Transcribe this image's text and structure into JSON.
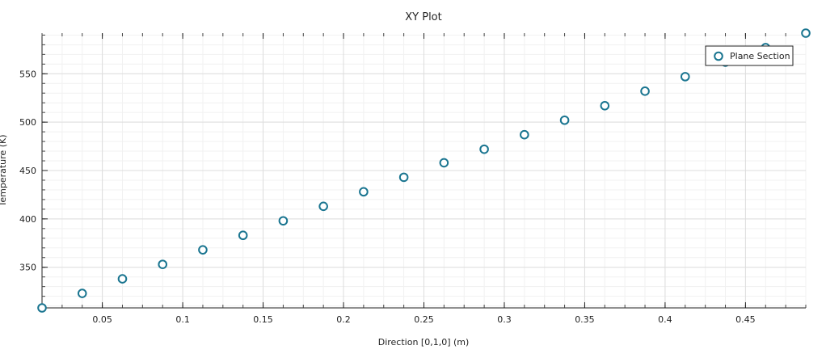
{
  "chart_data": {
    "type": "scatter",
    "title": "XY Plot",
    "xlabel": "Direction [0,1,0] (m)",
    "ylabel": "Temperature (K)",
    "xlim": [
      0.0125,
      0.4875
    ],
    "ylim": [
      308,
      592
    ],
    "xticks": [
      0.05,
      0.1,
      0.15,
      0.2,
      0.25,
      0.3,
      0.35,
      0.4,
      0.45
    ],
    "xtick_labels": [
      "0.05",
      "0.1",
      "0.15",
      "0.2",
      "0.25",
      "0.3",
      "0.35",
      "0.4",
      "0.45"
    ],
    "yticks": [
      350,
      400,
      450,
      500,
      550
    ],
    "ytick_labels": [
      "350",
      "400",
      "450",
      "500",
      "550"
    ],
    "grid": true,
    "legend_position": "top-right",
    "marker_color": "#1a7590",
    "series": [
      {
        "name": "Plane Section",
        "x": [
          0.0125,
          0.0375,
          0.0625,
          0.0875,
          0.1125,
          0.1375,
          0.1625,
          0.1875,
          0.2125,
          0.2375,
          0.2625,
          0.2875,
          0.3125,
          0.3375,
          0.3625,
          0.3875,
          0.4125,
          0.4375,
          0.4625,
          0.4875
        ],
        "y": [
          308,
          323,
          338,
          353,
          368,
          383,
          398,
          413,
          428,
          443,
          458,
          472,
          487,
          502,
          517,
          532,
          547,
          562,
          577,
          592
        ]
      }
    ]
  }
}
